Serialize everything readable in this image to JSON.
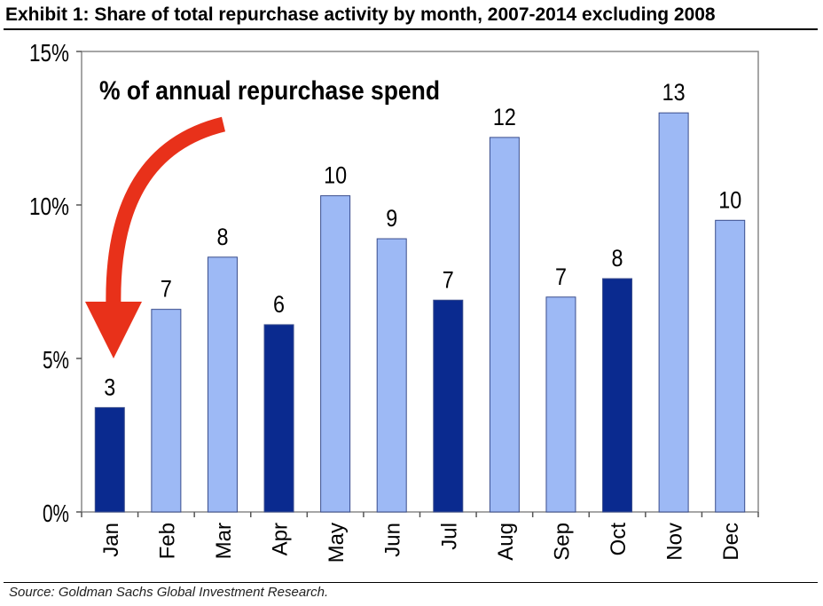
{
  "title": "Exhibit 1: Share of total repurchase activity by month, 2007-2014 excluding 2008",
  "source": "Source: Goldman Sachs Global Investment Research.",
  "chart_data": {
    "type": "bar",
    "annotation": "% of annual repurchase spend",
    "categories": [
      "Jan",
      "Feb",
      "Mar",
      "Apr",
      "May",
      "Jun",
      "Jul",
      "Aug",
      "Sep",
      "Oct",
      "Nov",
      "Dec"
    ],
    "values": [
      3.4,
      6.6,
      8.3,
      6.1,
      10.3,
      8.9,
      6.9,
      12.2,
      7.0,
      7.6,
      13.0,
      9.5
    ],
    "data_labels": [
      "3",
      "7",
      "8",
      "6",
      "10",
      "9",
      "7",
      "12",
      "7",
      "8",
      "13",
      "10"
    ],
    "highlighted": [
      true,
      false,
      false,
      true,
      false,
      false,
      true,
      false,
      false,
      true,
      false,
      false
    ],
    "ylim": [
      0,
      15
    ],
    "yticks": [
      0,
      5,
      10,
      15
    ],
    "ytick_labels": [
      "0%",
      "5%",
      "10%",
      "15%"
    ],
    "xlabel": "",
    "ylabel": "",
    "grid": false,
    "legend": "none",
    "colors": {
      "highlight": "#0a2a8f",
      "normal": "#9db9f5",
      "bar_edge": "#3a4d8c",
      "arrow": "#e8311a",
      "frame": "#888888"
    }
  }
}
